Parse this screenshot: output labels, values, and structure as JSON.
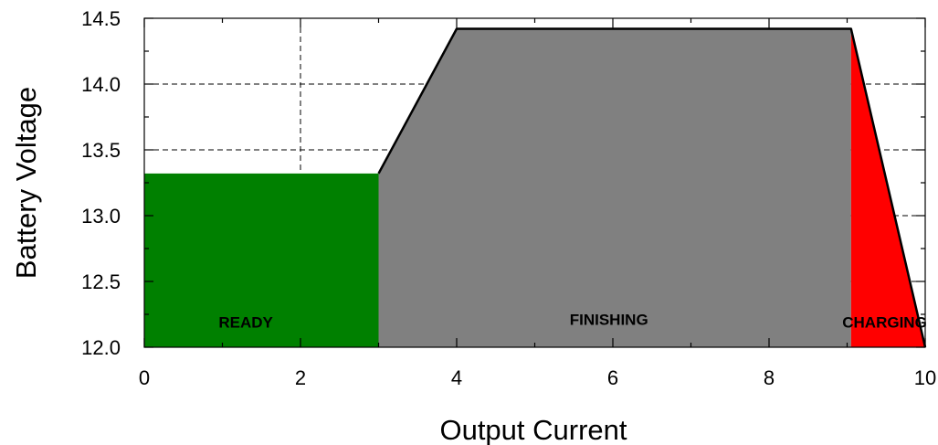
{
  "chart_data": {
    "type": "area",
    "xlabel": "Output Current",
    "ylabel": "Battery Voltage",
    "xlim": [
      0,
      10
    ],
    "ylim": [
      12.0,
      14.5
    ],
    "x_ticks": [
      "0",
      "2",
      "4",
      "6",
      "8",
      "10"
    ],
    "y_ticks": [
      "12.0",
      "12.5",
      "13.0",
      "13.5",
      "14.0",
      "14.5"
    ],
    "grid": true,
    "regions": [
      {
        "label": "READY",
        "color": "#008000",
        "label_pos": [
          1.3,
          12.15
        ],
        "points": [
          [
            0,
            12.0
          ],
          [
            0,
            13.32
          ],
          [
            3,
            13.32
          ],
          [
            3,
            12.0
          ]
        ]
      },
      {
        "label": "FINISHING",
        "color": "#808080",
        "label_pos": [
          5.95,
          12.17
        ],
        "points": [
          [
            3,
            12.0
          ],
          [
            3,
            13.32
          ],
          [
            4,
            14.42
          ],
          [
            9.05,
            14.42
          ],
          [
            9.05,
            12.0
          ]
        ]
      },
      {
        "label": "CHARGING",
        "color": "#ff0000",
        "label_pos": [
          9.48,
          12.15
        ],
        "points": [
          [
            9.05,
            12.0
          ],
          [
            9.05,
            14.42
          ],
          [
            10,
            12.0
          ]
        ]
      }
    ],
    "boundary_line": {
      "color": "#000000",
      "points": [
        [
          3,
          13.32
        ],
        [
          4,
          14.42
        ],
        [
          9.05,
          14.42
        ],
        [
          10,
          12.0
        ]
      ]
    }
  }
}
